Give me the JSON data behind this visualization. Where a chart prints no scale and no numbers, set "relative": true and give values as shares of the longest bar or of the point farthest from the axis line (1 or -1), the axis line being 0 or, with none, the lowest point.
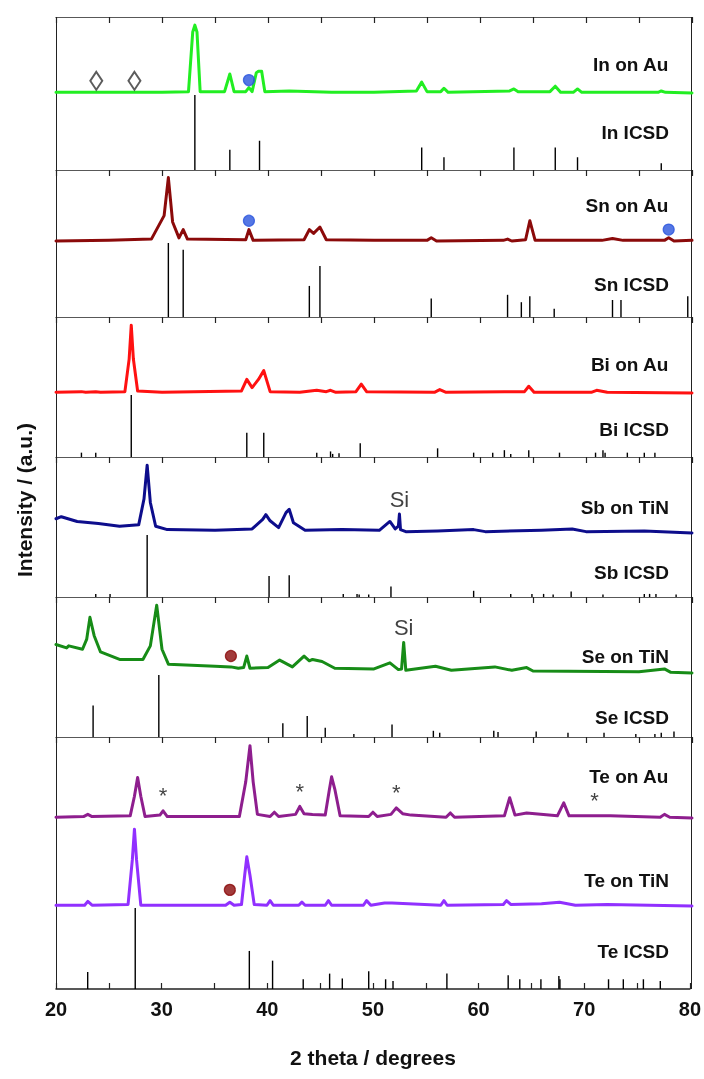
{
  "chart_data": [
    {
      "type": "line",
      "title": "In on Au",
      "relative": true,
      "xlim": [
        20,
        80
      ],
      "xticks": [
        20,
        {
          "value": 25,
          "label": null
        },
        30,
        {
          "value": 35,
          "label": null
        },
        40,
        {
          "value": 45,
          "label": null
        },
        50,
        {
          "value": 55,
          "label": null
        },
        60,
        {
          "value": 65,
          "label": null
        },
        70,
        {
          "value": 75,
          "label": null
        },
        80
      ],
      "tick_labels": false,
      "series": [
        {
          "color": "#22ee22",
          "x": [
            20,
            30,
            32.5,
            32.9,
            33.1,
            33.3,
            33.6,
            35.9,
            36.4,
            36.8,
            37.9,
            38.2,
            38.5,
            38.9,
            39.1,
            39.4,
            39.7,
            42,
            46,
            50,
            54,
            54.5,
            55,
            56.3,
            56.6,
            57,
            62.8,
            63.2,
            63.6,
            66.6,
            67.1,
            67.6,
            68.8,
            69.2,
            69.6,
            76.8,
            77.1,
            77.5,
            80
          ],
          "values": [
            0.01,
            0.01,
            0.02,
            0.9,
            1.0,
            0.9,
            0.02,
            0.02,
            0.28,
            0.02,
            0.02,
            0.08,
            0.02,
            0.3,
            0.32,
            0.32,
            0.02,
            0.03,
            0.01,
            0.01,
            0.03,
            0.16,
            0.02,
            0.02,
            0.07,
            0.01,
            0.03,
            0.06,
            0.02,
            0.02,
            0.1,
            0.01,
            0.01,
            0.06,
            0.01,
            0.01,
            0.03,
            0.01,
            0
          ]
        },
        {
          "type": "scatter",
          "marker": "diamond",
          "color": "#333333",
          "x": [
            23.8,
            27.4
          ],
          "values": [
            0.18,
            0.18
          ]
        },
        {
          "type": "scatter",
          "marker": "circle",
          "color": "#2a55dd",
          "x": [
            38.2
          ],
          "values": [
            0.19
          ]
        }
      ]
    },
    {
      "type": "bar",
      "title": "In ICSD",
      "relative": true,
      "xlim": [
        20,
        80
      ],
      "tick_labels": false,
      "series": [
        {
          "color": "#000000",
          "x": [
            33.1,
            36.4,
            39.2,
            54.5,
            56.6,
            63.2,
            67.1,
            69.2,
            77.1
          ],
          "values": [
            1,
            0.27,
            0.39,
            0.3,
            0.17,
            0.3,
            0.3,
            0.17,
            0.09
          ]
        }
      ]
    },
    {
      "type": "line",
      "title": "Sn on Au",
      "relative": true,
      "xlim": [
        20,
        80
      ],
      "xticks": [
        20,
        {
          "value": 25,
          "label": null
        },
        30,
        {
          "value": 35,
          "label": null
        },
        40,
        {
          "value": 45,
          "label": null
        },
        50,
        {
          "value": 55,
          "label": null
        },
        60,
        {
          "value": 65,
          "label": null
        },
        70,
        {
          "value": 75,
          "label": null
        },
        80
      ],
      "tick_labels": false,
      "series": [
        {
          "color": "#8b0a0a",
          "x": [
            20,
            25,
            29,
            30.2,
            30.6,
            31.0,
            31.6,
            32.0,
            32.4,
            37.9,
            38.2,
            38.6,
            43.4,
            43.9,
            44.3,
            44.9,
            45.5,
            50,
            55.0,
            55.4,
            55.9,
            62.2,
            62.6,
            63,
            64.3,
            64.7,
            65.2,
            71.5,
            72.5,
            73.5,
            77.4,
            77.8,
            78.3,
            80
          ],
          "values": [
            0.0,
            0.01,
            0.03,
            0.4,
            1.0,
            0.3,
            0.05,
            0.18,
            0.03,
            0.02,
            0.18,
            0.01,
            0.02,
            0.18,
            0.12,
            0.22,
            0.02,
            0.01,
            0.01,
            0.05,
            0.0,
            0.01,
            0.03,
            0.0,
            0.02,
            0.32,
            0.01,
            0.01,
            0.04,
            0.01,
            0.01,
            0.05,
            0.0,
            0.01
          ]
        },
        {
          "type": "scatter",
          "marker": "circle",
          "color": "#2a55dd",
          "x": [
            38.2,
            77.8
          ],
          "values": [
            0.32,
            0.18
          ]
        }
      ]
    },
    {
      "type": "bar",
      "title": "Sn ICSD",
      "relative": true,
      "xlim": [
        20,
        80
      ],
      "tick_labels": false,
      "series": [
        {
          "color": "#000000",
          "x": [
            30.6,
            32.0,
            43.9,
            44.9,
            55.4,
            62.6,
            63.9,
            64.7,
            67.0,
            72.5,
            73.3,
            79.6
          ],
          "values": [
            1,
            0.91,
            0.42,
            0.69,
            0.25,
            0.3,
            0.2,
            0.28,
            0.11,
            0.23,
            0.23,
            0.28
          ]
        }
      ]
    },
    {
      "type": "line",
      "title": "Bi on Au",
      "relative": true,
      "xlim": [
        20,
        80
      ],
      "xticks": [
        20,
        {
          "value": 25,
          "label": null
        },
        30,
        {
          "value": 35,
          "label": null
        },
        40,
        {
          "value": 45,
          "label": null
        },
        50,
        {
          "value": 55,
          "label": null
        },
        60,
        {
          "value": 65,
          "label": null
        },
        70,
        {
          "value": 75,
          "label": null
        },
        80
      ],
      "tick_labels": false,
      "series": [
        {
          "color": "#ff1111",
          "x": [
            20,
            22.4,
            22.8,
            23.75,
            24.2,
            26.5,
            26.9,
            27.1,
            27.3,
            27.7,
            30,
            37.5,
            38.0,
            38.5,
            39.1,
            39.6,
            40.2,
            43,
            44.6,
            45.5,
            45.9,
            46.4,
            48.3,
            48.8,
            49.3,
            55.7,
            56.2,
            56.8,
            62.3,
            64.2,
            64.6,
            65.1,
            70.5,
            71.0,
            72,
            80
          ],
          "values": [
            0.01,
            0.02,
            0.01,
            0.02,
            0.01,
            0.02,
            0.5,
            1.0,
            0.5,
            0.03,
            0.01,
            0.03,
            0.2,
            0.08,
            0.2,
            0.33,
            0.02,
            0.01,
            0.04,
            0.02,
            0.04,
            0.01,
            0.02,
            0.13,
            0.02,
            0.01,
            0.05,
            0.01,
            0.02,
            0.02,
            0.1,
            0.01,
            0.01,
            0.04,
            0.01,
            0
          ]
        }
      ]
    },
    {
      "type": "bar",
      "title": "Bi ICSD",
      "relative": true,
      "xlim": [
        20,
        80
      ],
      "tick_labels": false,
      "series": [
        {
          "color": "#000000",
          "x": [
            22.4,
            23.75,
            27.1,
            38.0,
            39.6,
            44.6,
            45.9,
            46.1,
            46.7,
            48.7,
            56.0,
            59.4,
            61.2,
            62.3,
            62.9,
            64.6,
            67.5,
            70.9,
            71.6,
            71.8,
            73.9,
            75.5,
            76.5
          ],
          "values": [
            0.07,
            0.07,
            1,
            0.39,
            0.39,
            0.07,
            0.09,
            0.05,
            0.06,
            0.22,
            0.14,
            0.07,
            0.07,
            0.11,
            0.05,
            0.11,
            0.07,
            0.07,
            0.11,
            0.07,
            0.07,
            0.07,
            0.07
          ]
        }
      ]
    },
    {
      "type": "line",
      "title": "Sb on TiN",
      "ylabel": "Intensity / (a.u.)",
      "relative": true,
      "xlim": [
        20,
        80
      ],
      "xticks": [
        20,
        {
          "value": 25,
          "label": null
        },
        30,
        {
          "value": 35,
          "label": null
        },
        40,
        {
          "value": 45,
          "label": null
        },
        50,
        {
          "value": 55,
          "label": null
        },
        60,
        {
          "value": 65,
          "label": null
        },
        70,
        {
          "value": 75,
          "label": null
        },
        80
      ],
      "tick_labels": false,
      "annotations": [
        {
          "text": "Si",
          "x": 52.4,
          "y": 0.28
        }
      ],
      "series": [
        {
          "color": "#0d0d8c",
          "x": [
            20,
            20.5,
            22,
            24,
            26,
            27.8,
            28.3,
            28.6,
            28.9,
            29.4,
            30.5,
            35,
            38.5,
            39.5,
            39.8,
            40.2,
            41.0,
            41.7,
            42.0,
            42.4,
            43.5,
            47,
            50.5,
            51.5,
            52.0,
            52.3,
            52.4,
            52.5,
            53,
            56,
            59.4,
            60.5,
            65.8,
            68.7,
            70,
            75.5,
            80
          ],
          "values": [
            0.21,
            0.24,
            0.17,
            0.14,
            0.1,
            0.12,
            0.5,
            1.0,
            0.45,
            0.1,
            0.05,
            0.04,
            0.06,
            0.2,
            0.27,
            0.18,
            0.08,
            0.3,
            0.35,
            0.15,
            0.04,
            0.05,
            0.04,
            0.17,
            0.06,
            0.1,
            0.28,
            0.05,
            0.02,
            0.03,
            0.05,
            0.02,
            0.04,
            0.06,
            0.02,
            0.03,
            0
          ]
        }
      ]
    },
    {
      "type": "bar",
      "title": "Sb ICSD",
      "relative": true,
      "xlim": [
        20,
        80
      ],
      "tick_labels": false,
      "series": [
        {
          "color": "#000000",
          "x": [
            23.75,
            25.1,
            28.6,
            40.1,
            42.0,
            47.1,
            48.4,
            48.6,
            49.5,
            51.6,
            59.4,
            62.9,
            64.9,
            66.0,
            66.9,
            68.6,
            71.6,
            75.5,
            76.0,
            76.6,
            78.5
          ],
          "values": [
            0.05,
            0.05,
            1,
            0.34,
            0.35,
            0.05,
            0.05,
            0.04,
            0.04,
            0.17,
            0.1,
            0.05,
            0.05,
            0.05,
            0.04,
            0.09,
            0.04,
            0.05,
            0.05,
            0.05,
            0.04
          ]
        }
      ]
    },
    {
      "type": "line",
      "title": "Se on TiN",
      "relative": true,
      "xlim": [
        20,
        80
      ],
      "xticks": [
        20,
        {
          "value": 25,
          "label": null
        },
        30,
        {
          "value": 35,
          "label": null
        },
        40,
        {
          "value": 45,
          "label": null
        },
        50,
        {
          "value": 55,
          "label": null
        },
        60,
        {
          "value": 65,
          "label": null
        },
        70,
        {
          "value": 75,
          "label": null
        },
        80
      ],
      "tick_labels": false,
      "annotations": [
        {
          "text": "Si",
          "x": 52.8,
          "y": 0.45
        }
      ],
      "series": [
        {
          "color": "#178c17",
          "x": [
            20,
            21,
            21.2,
            22.5,
            22.9,
            23.2,
            23.6,
            24.2,
            26,
            28.2,
            28.9,
            29.5,
            30.0,
            30.6,
            35,
            36.5,
            37.2,
            37.7,
            38.0,
            38.3,
            40,
            41.1,
            42.3,
            43.4,
            43.9,
            44.2,
            45.1,
            46.3,
            50,
            51.5,
            52.3,
            52.6,
            52.8,
            53.0,
            55.8,
            57.3,
            61.4,
            63,
            64.4,
            65,
            75,
            77.4,
            78,
            80
          ],
          "values": [
            0.42,
            0.37,
            0.4,
            0.35,
            0.5,
            0.82,
            0.55,
            0.31,
            0.2,
            0.2,
            0.4,
            1.0,
            0.35,
            0.13,
            0.1,
            0.09,
            0.07,
            0.08,
            0.25,
            0.07,
            0.08,
            0.19,
            0.09,
            0.25,
            0.18,
            0.2,
            0.17,
            0.07,
            0.06,
            0.15,
            0.05,
            0.06,
            0.45,
            0.04,
            0.1,
            0.04,
            0.09,
            0.04,
            0.08,
            0.03,
            0.02,
            0.06,
            0.01,
            0
          ]
        },
        {
          "type": "scatter",
          "marker": "circle",
          "color": "#8b0a0a",
          "x": [
            36.5
          ],
          "values": [
            0.25
          ]
        }
      ]
    },
    {
      "type": "bar",
      "title": "Se ICSD",
      "relative": true,
      "xlim": [
        20,
        80
      ],
      "tick_labels": false,
      "series": [
        {
          "color": "#000000",
          "x": [
            23.5,
            29.7,
            41.4,
            43.7,
            45.4,
            48.1,
            51.7,
            55.6,
            56.2,
            61.3,
            61.7,
            65.3,
            68.3,
            71.7,
            74.7,
            76.5,
            77.1,
            78.3
          ],
          "values": [
            0.51,
            1,
            0.22,
            0.34,
            0.15,
            0.05,
            0.2,
            0.1,
            0.07,
            0.1,
            0.08,
            0.09,
            0.07,
            0.07,
            0.05,
            0.05,
            0.07,
            0.09
          ]
        }
      ]
    },
    {
      "type": "line",
      "title": "Te on Au",
      "relative": true,
      "xlim": [
        20,
        80
      ],
      "xticks": [
        20,
        {
          "value": 25,
          "label": null
        },
        30,
        {
          "value": 35,
          "label": null
        },
        40,
        {
          "value": 45,
          "label": null
        },
        50,
        {
          "value": 55,
          "label": null
        },
        60,
        {
          "value": 65,
          "label": null
        },
        70,
        {
          "value": 75,
          "label": null
        },
        80
      ],
      "tick_labels": false,
      "annotations": [
        {
          "text": "*",
          "x": 30.1,
          "y": 0.1
        },
        {
          "text": "*",
          "x": 43.0,
          "y": 0.16
        },
        {
          "text": "*",
          "x": 52.1,
          "y": 0.14
        },
        {
          "text": "*",
          "x": 70.8,
          "y": 0.03
        }
      ],
      "series": [
        {
          "color": "#8e1e8e",
          "x": [
            20,
            22.6,
            23.0,
            23.4,
            27.0,
            27.4,
            27.7,
            28.0,
            28.4,
            29.8,
            30.1,
            30.5,
            37.3,
            37.9,
            38.3,
            38.6,
            39.0,
            40.2,
            40.6,
            41.0,
            42.6,
            43.0,
            43.4,
            44.2,
            45.4,
            45.8,
            46.0,
            46.3,
            46.8,
            49.5,
            49.9,
            50.3,
            51.6,
            52.1,
            52.7,
            53.5,
            56.8,
            57.2,
            57.6,
            62.3,
            62.8,
            63.3,
            64.4,
            67.3,
            67.9,
            68.4,
            70.8,
            72.3,
            77.0,
            77.4,
            77.9,
            80
          ],
          "values": [
            0.01,
            0.02,
            0.05,
            0.02,
            0.03,
            0.3,
            0.56,
            0.3,
            0.02,
            0.04,
            0.1,
            0.02,
            0.02,
            0.5,
            1.0,
            0.5,
            0.05,
            0.02,
            0.08,
            0.02,
            0.05,
            0.16,
            0.06,
            0.05,
            0.04,
            0.4,
            0.57,
            0.4,
            0.03,
            0.02,
            0.08,
            0.02,
            0.05,
            0.14,
            0.06,
            0.04,
            0.01,
            0.07,
            0.01,
            0.03,
            0.28,
            0.04,
            0.07,
            0.03,
            0.21,
            0.03,
            0.03,
            0.03,
            0.01,
            0.05,
            0.01,
            0
          ]
        }
      ]
    },
    {
      "type": "line",
      "title": "Te on TiN",
      "relative": true,
      "xlim": [
        20,
        80
      ],
      "tick_labels": false,
      "series": [
        {
          "color": "#9130ff",
          "x": [
            20,
            22.7,
            23.0,
            23.4,
            26.8,
            27.2,
            27.4,
            27.6,
            28.0,
            36.0,
            36.4,
            36.8,
            37.5,
            37.8,
            38.0,
            38.3,
            38.7,
            39.9,
            40.2,
            40.5,
            42.9,
            43.2,
            43.5,
            45.4,
            45.7,
            46.0,
            49.0,
            49.3,
            49.7,
            51.0,
            51.7,
            56.3,
            56.6,
            56.9,
            62.2,
            62.5,
            62.9,
            65.8,
            67.5,
            69,
            72,
            80
          ],
          "values": [
            0.01,
            0.01,
            0.06,
            0.01,
            0.02,
            0.6,
            1.0,
            0.6,
            0.01,
            0.01,
            0.05,
            0.01,
            0.02,
            0.4,
            0.64,
            0.4,
            0.02,
            0.01,
            0.07,
            0.01,
            0.01,
            0.05,
            0.01,
            0.01,
            0.07,
            0.01,
            0.01,
            0.07,
            0.01,
            0.04,
            0.04,
            0.01,
            0.07,
            0.01,
            0.02,
            0.07,
            0.02,
            0.03,
            0.05,
            0.01,
            0.02,
            0
          ]
        },
        {
          "type": "scatter",
          "marker": "circle",
          "color": "#8b0a0a",
          "x": [
            36.4
          ],
          "values": [
            0.21
          ]
        }
      ]
    },
    {
      "type": "bar",
      "title": "Te ICSD",
      "xlabel": "2 theta / degrees",
      "relative": true,
      "xlim": [
        20,
        80
      ],
      "xticks": [
        20,
        {
          "value": 25,
          "label": null
        },
        30,
        {
          "value": 35,
          "label": null
        },
        40,
        {
          "value": 45,
          "label": null
        },
        50,
        {
          "value": 55,
          "label": null
        },
        60,
        {
          "value": 65,
          "label": null
        },
        70,
        {
          "value": 75,
          "label": null
        },
        80
      ],
      "tick_labels": "x",
      "series": [
        {
          "color": "#000000",
          "x": [
            23.0,
            27.5,
            38.3,
            40.5,
            43.4,
            45.9,
            47.1,
            49.6,
            51.2,
            51.9,
            57.0,
            62.8,
            63.9,
            65.9,
            67.6,
            67.7,
            72.3,
            73.7,
            75.6,
            77.2
          ],
          "values": [
            0.21,
            1,
            0.47,
            0.35,
            0.12,
            0.19,
            0.13,
            0.22,
            0.12,
            0.1,
            0.19,
            0.17,
            0.12,
            0.12,
            0.16,
            0.12,
            0.12,
            0.12,
            0.12,
            0.1
          ]
        }
      ]
    }
  ]
}
